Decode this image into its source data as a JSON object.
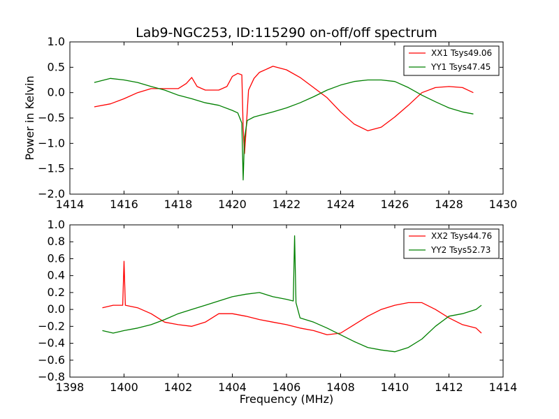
{
  "figure": {
    "title": "Lab9-NGC253, ID:115290 on-off/off spectrum",
    "background": "#ffffff"
  },
  "chart_data": [
    {
      "type": "line",
      "title": "Lab9-NGC253, ID:115290 on-off/off spectrum",
      "xlabel": "",
      "ylabel": "Power in Kelvin",
      "xlim": [
        1414,
        1430
      ],
      "ylim": [
        -2.0,
        1.0
      ],
      "xticks": [
        1414,
        1416,
        1418,
        1420,
        1422,
        1424,
        1426,
        1428,
        1430
      ],
      "xtick_labels": [
        "1414",
        "1416",
        "1418",
        "1420",
        "1422",
        "1424",
        "1426",
        "1428",
        "1430"
      ],
      "yticks": [
        -2.0,
        -1.5,
        -1.0,
        -0.5,
        0.0,
        0.5,
        1.0
      ],
      "ytick_labels": [
        "−2.0",
        "−1.5",
        "−1.0",
        "−0.5",
        "0.0",
        "0.5",
        "1.0"
      ],
      "legend_position": "top-right",
      "grid": false,
      "series": [
        {
          "name": "XX1 Tsys49.06",
          "color": "#ff0000",
          "x": [
            1414.9,
            1415.5,
            1416.0,
            1416.5,
            1417.0,
            1417.5,
            1418.0,
            1418.3,
            1418.5,
            1418.7,
            1419.0,
            1419.5,
            1419.8,
            1420.0,
            1420.2,
            1420.35,
            1420.4,
            1420.45,
            1420.5,
            1420.6,
            1420.8,
            1421.0,
            1421.5,
            1422.0,
            1422.5,
            1423.0,
            1423.5,
            1424.0,
            1424.5,
            1425.0,
            1425.5,
            1426.0,
            1426.5,
            1427.0,
            1427.5,
            1428.0,
            1428.5,
            1428.9
          ],
          "y": [
            -0.28,
            -0.22,
            -0.12,
            0.0,
            0.08,
            0.08,
            0.08,
            0.18,
            0.3,
            0.12,
            0.05,
            0.05,
            0.12,
            0.32,
            0.38,
            0.35,
            -0.7,
            -1.2,
            -0.8,
            0.05,
            0.28,
            0.4,
            0.52,
            0.45,
            0.3,
            0.1,
            -0.1,
            -0.38,
            -0.62,
            -0.75,
            -0.68,
            -0.48,
            -0.25,
            0.0,
            0.1,
            0.12,
            0.1,
            0.0
          ]
        },
        {
          "name": "YY1 Tsys47.45",
          "color": "#008000",
          "x": [
            1414.9,
            1415.5,
            1416.0,
            1416.5,
            1417.0,
            1417.5,
            1418.0,
            1418.5,
            1419.0,
            1419.5,
            1420.0,
            1420.2,
            1420.35,
            1420.4,
            1420.45,
            1420.55,
            1420.8,
            1421.0,
            1421.5,
            1422.0,
            1422.5,
            1423.0,
            1423.5,
            1424.0,
            1424.5,
            1425.0,
            1425.5,
            1426.0,
            1426.5,
            1427.0,
            1427.5,
            1428.0,
            1428.5,
            1428.9
          ],
          "y": [
            0.2,
            0.28,
            0.25,
            0.2,
            0.12,
            0.05,
            -0.05,
            -0.12,
            -0.2,
            -0.25,
            -0.35,
            -0.4,
            -0.6,
            -1.72,
            -0.9,
            -0.55,
            -0.48,
            -0.45,
            -0.38,
            -0.3,
            -0.2,
            -0.08,
            0.05,
            0.15,
            0.22,
            0.25,
            0.25,
            0.22,
            0.1,
            -0.05,
            -0.18,
            -0.3,
            -0.38,
            -0.42
          ]
        }
      ]
    },
    {
      "type": "line",
      "title": "",
      "xlabel": "Frequency (MHz)",
      "ylabel": "",
      "xlim": [
        1398,
        1414
      ],
      "ylim": [
        -0.8,
        1.0
      ],
      "xticks": [
        1398,
        1400,
        1402,
        1404,
        1406,
        1408,
        1410,
        1412,
        1414
      ],
      "xtick_labels": [
        "1398",
        "1400",
        "1402",
        "1404",
        "1406",
        "1408",
        "1410",
        "1412",
        "1414"
      ],
      "yticks": [
        -0.8,
        -0.6,
        -0.4,
        -0.2,
        0.0,
        0.2,
        0.4,
        0.6,
        0.8,
        1.0
      ],
      "ytick_labels": [
        "−0.8",
        "−0.6",
        "−0.4",
        "−0.2",
        "0.0",
        "0.2",
        "0.4",
        "0.6",
        "0.8",
        "1.0"
      ],
      "legend_position": "top-right",
      "grid": false,
      "series": [
        {
          "name": "XX2 Tsys44.76",
          "color": "#ff0000",
          "x": [
            1399.2,
            1399.6,
            1399.95,
            1400.0,
            1400.05,
            1400.5,
            1401.0,
            1401.5,
            1402.0,
            1402.5,
            1403.0,
            1403.5,
            1404.0,
            1404.5,
            1405.0,
            1405.5,
            1406.0,
            1406.5,
            1407.0,
            1407.5,
            1408.0,
            1408.5,
            1409.0,
            1409.5,
            1410.0,
            1410.5,
            1411.0,
            1411.5,
            1412.0,
            1412.5,
            1413.0,
            1413.2
          ],
          "y": [
            0.02,
            0.05,
            0.05,
            0.57,
            0.05,
            0.02,
            -0.05,
            -0.15,
            -0.18,
            -0.2,
            -0.15,
            -0.05,
            -0.05,
            -0.08,
            -0.12,
            -0.15,
            -0.18,
            -0.22,
            -0.25,
            -0.3,
            -0.28,
            -0.18,
            -0.08,
            0.0,
            0.05,
            0.08,
            0.08,
            0.0,
            -0.1,
            -0.18,
            -0.22,
            -0.28
          ]
        },
        {
          "name": "YY2 Tsys52.73",
          "color": "#008000",
          "x": [
            1399.2,
            1399.6,
            1400.0,
            1400.5,
            1401.0,
            1401.5,
            1402.0,
            1402.5,
            1403.0,
            1403.5,
            1404.0,
            1404.5,
            1405.0,
            1405.5,
            1406.0,
            1406.25,
            1406.3,
            1406.35,
            1406.5,
            1407.0,
            1407.5,
            1408.0,
            1408.5,
            1409.0,
            1409.5,
            1410.0,
            1410.5,
            1411.0,
            1411.5,
            1412.0,
            1412.5,
            1413.0,
            1413.2
          ],
          "y": [
            -0.25,
            -0.28,
            -0.25,
            -0.22,
            -0.18,
            -0.12,
            -0.05,
            0.0,
            0.05,
            0.1,
            0.15,
            0.18,
            0.2,
            0.15,
            0.12,
            0.1,
            0.87,
            0.08,
            -0.1,
            -0.15,
            -0.22,
            -0.3,
            -0.38,
            -0.45,
            -0.48,
            -0.5,
            -0.45,
            -0.35,
            -0.2,
            -0.08,
            -0.05,
            0.0,
            0.05
          ]
        }
      ]
    }
  ]
}
